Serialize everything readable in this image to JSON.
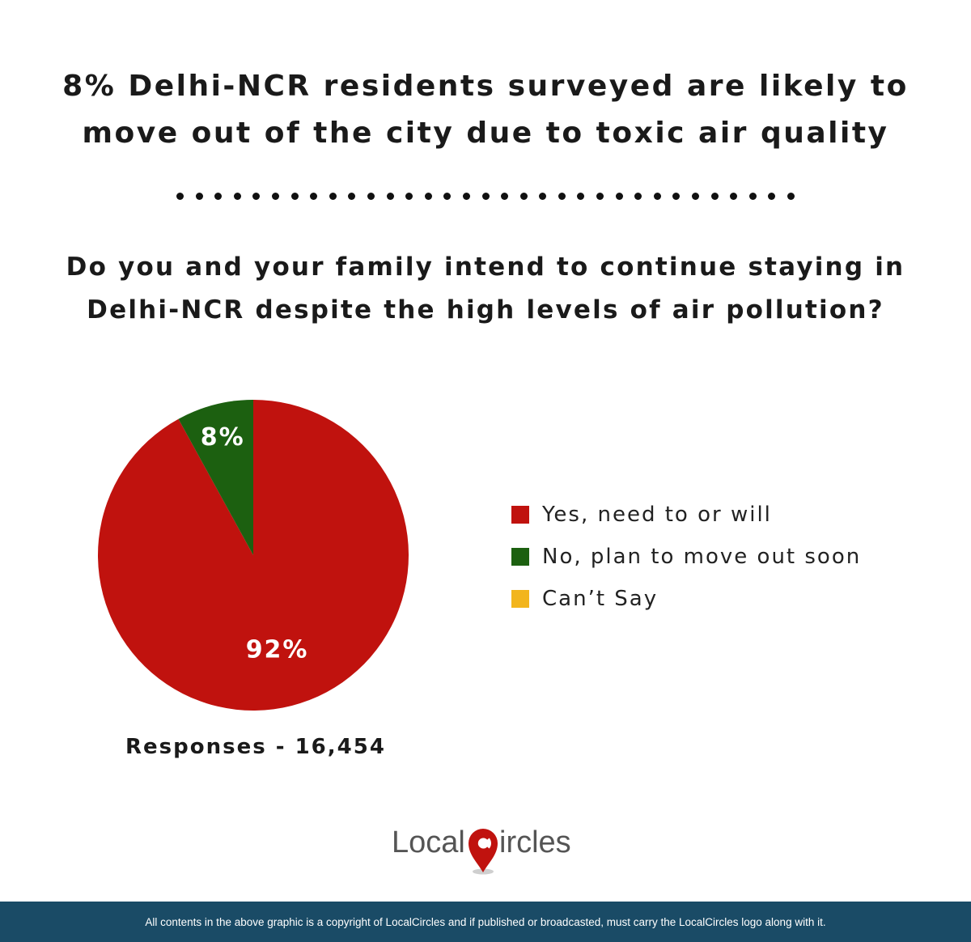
{
  "title_lines": [
    "8% Delhi-NCR residents surveyed are likely to",
    "move out of the city due to toxic air quality"
  ],
  "question_lines": [
    "Do you and your family intend to continue staying in",
    "Delhi-NCR despite the high levels of air pollution?"
  ],
  "chart_data": {
    "type": "pie",
    "categories": [
      "Yes, need to or will",
      "No, plan to move out soon",
      "Can’t Say"
    ],
    "values": [
      92,
      8,
      0
    ],
    "data_labels": [
      "92%",
      "8%",
      ""
    ],
    "colors": [
      "#c0120e",
      "#1c6010",
      "#f2b51d"
    ],
    "legend_position": "right"
  },
  "legend": [
    {
      "label": "Yes, need to or will",
      "color": "#c0120e"
    },
    {
      "label": "No, plan to move out soon",
      "color": "#1c6010"
    },
    {
      "label": "Can’t Say",
      "color": "#f2b51d"
    }
  ],
  "responses": "Responses - 16,454",
  "logo": {
    "text_left": "Local",
    "text_right": "ircles",
    "accent": "#c0120e"
  },
  "footer": "All contents in the above graphic is a copyright of LocalCircles and if published or broadcasted, must carry the LocalCircles logo along with it."
}
